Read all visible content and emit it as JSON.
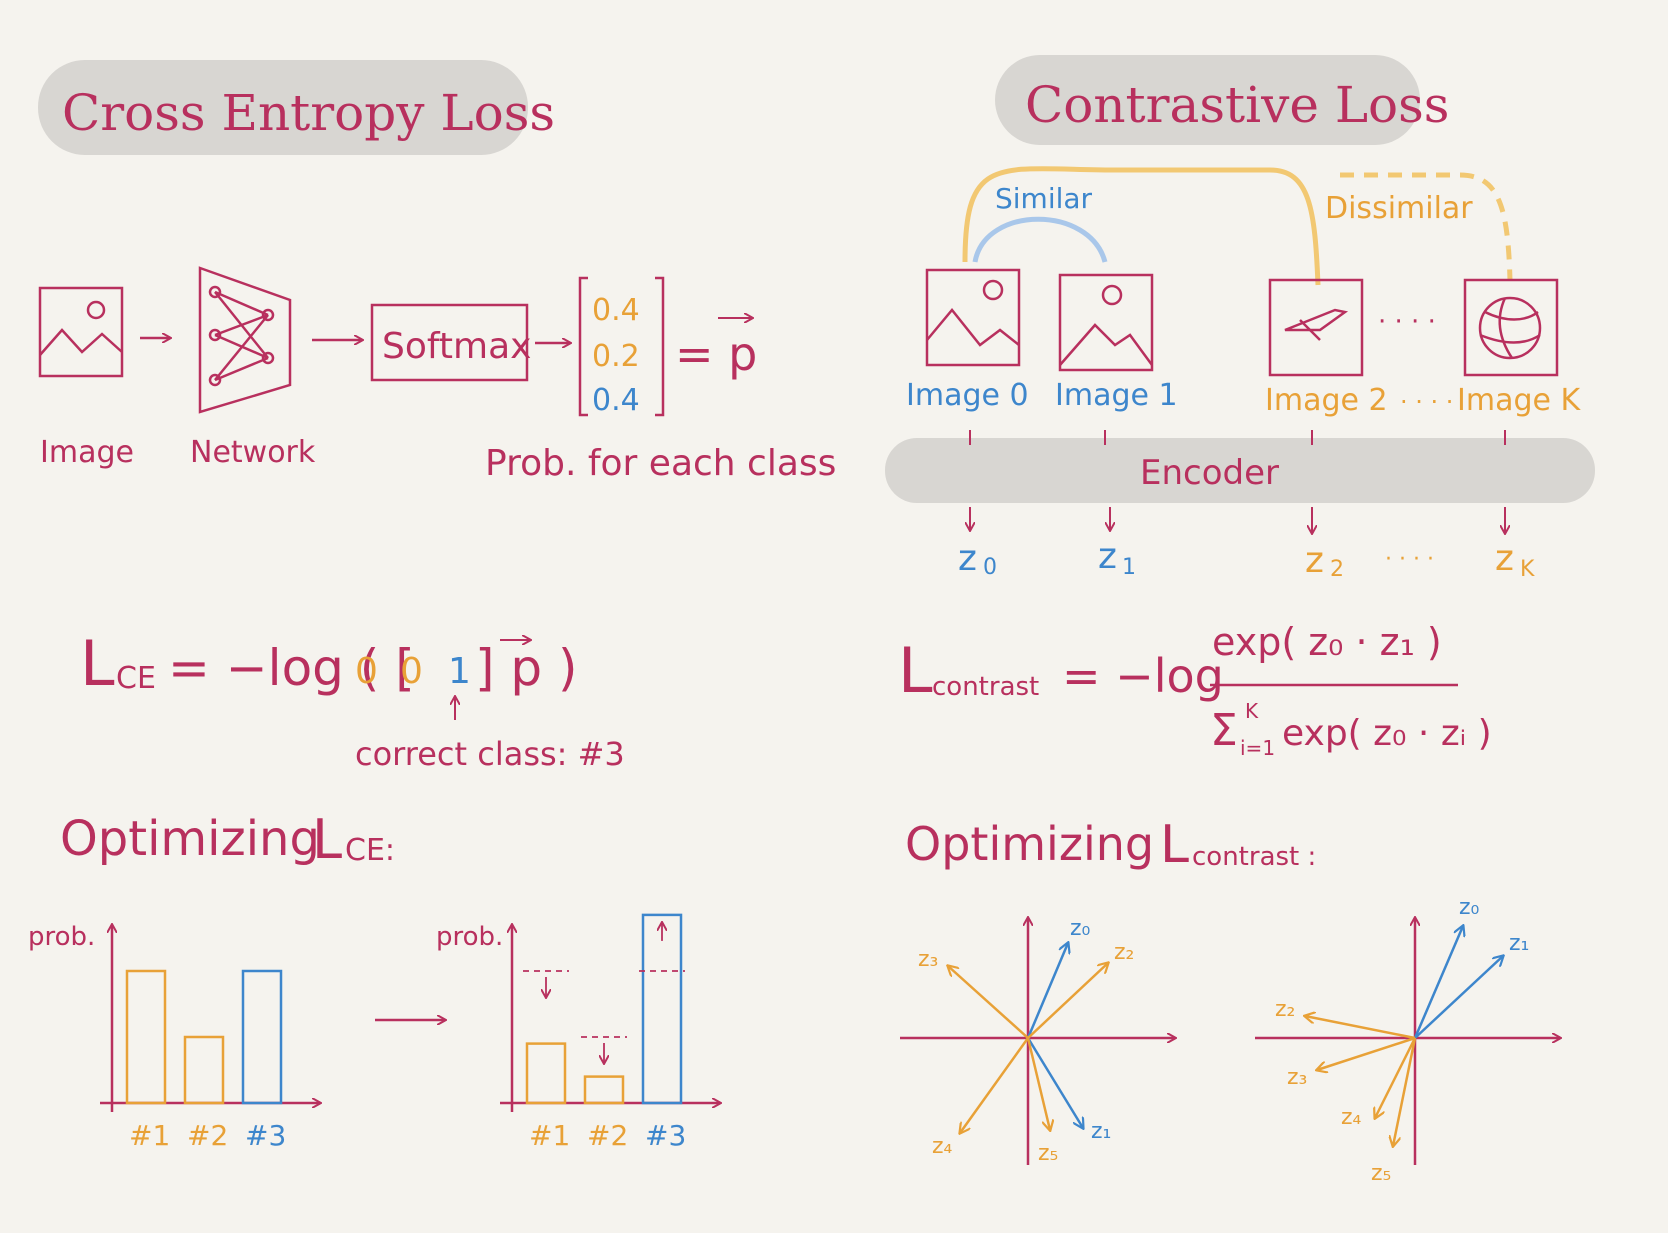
{
  "colors": {
    "pink": "#b8305e",
    "blue": "#3d86cc",
    "orange": "#e8a137",
    "gray_pill": "#d8d6d2",
    "background": "#f5f3ee",
    "arc_orange": "#f2c872"
  },
  "cross_entropy": {
    "title": "Cross Entropy Loss",
    "pipeline": {
      "image_label": "Image",
      "network_label": "Network",
      "softmax_label": "Softmax",
      "vector": [
        "0.4",
        "0.2",
        "0.4"
      ],
      "equals": "= p",
      "prob_label": "Prob. for each class"
    },
    "formula": {
      "lhs": "L",
      "lhs_sub": "CE",
      "rhs_prefix": "= −log ( [",
      "v1": "0",
      "v2": "0",
      "v3": "1",
      "rhs_suffix": "] p )",
      "annotation": "correct class: #3"
    },
    "optimizing_title": "Optimizing",
    "optimizing_L": "L",
    "optimizing_sub": "CE:",
    "chart_before": {
      "ylabel": "prob.",
      "categories": [
        "#1",
        "#2",
        "#3"
      ],
      "values": [
        0.4,
        0.2,
        0.4
      ]
    },
    "chart_after": {
      "ylabel": "prob.",
      "categories": [
        "#1",
        "#2",
        "#3"
      ],
      "values": [
        0.18,
        0.08,
        0.57
      ]
    }
  },
  "contrastive": {
    "title": "Contrastive Loss",
    "similar_label": "Similar",
    "dissimilar_label": "Dissimilar",
    "images": [
      "Image 0",
      "Image 1",
      "Image 2",
      "Image K"
    ],
    "encoder_label": "Encoder",
    "embeddings": [
      "z",
      "z",
      "z",
      "z"
    ],
    "embedding_subs": [
      "0",
      "1",
      "2",
      "K"
    ],
    "dots": "· · · ·",
    "formula": {
      "lhs": "L",
      "lhs_sub": "contrast",
      "eq": "= −log",
      "numerator": "exp( z₀ · z₁ )",
      "denominator_sum": "Σ",
      "sum_top": "K",
      "sum_bottom": "i=1",
      "denominator": "exp( z₀ · zᵢ )"
    },
    "optimizing_title": "Optimizing",
    "optimizing_L": "L",
    "optimizing_sub": "contrast :",
    "vectors_before": [
      "z₀",
      "z₁",
      "z₂",
      "z₃",
      "z₄",
      "z₅"
    ],
    "vectors_after": [
      "z₀",
      "z₁",
      "z₂",
      "z₃",
      "z₄",
      "z₅"
    ]
  }
}
